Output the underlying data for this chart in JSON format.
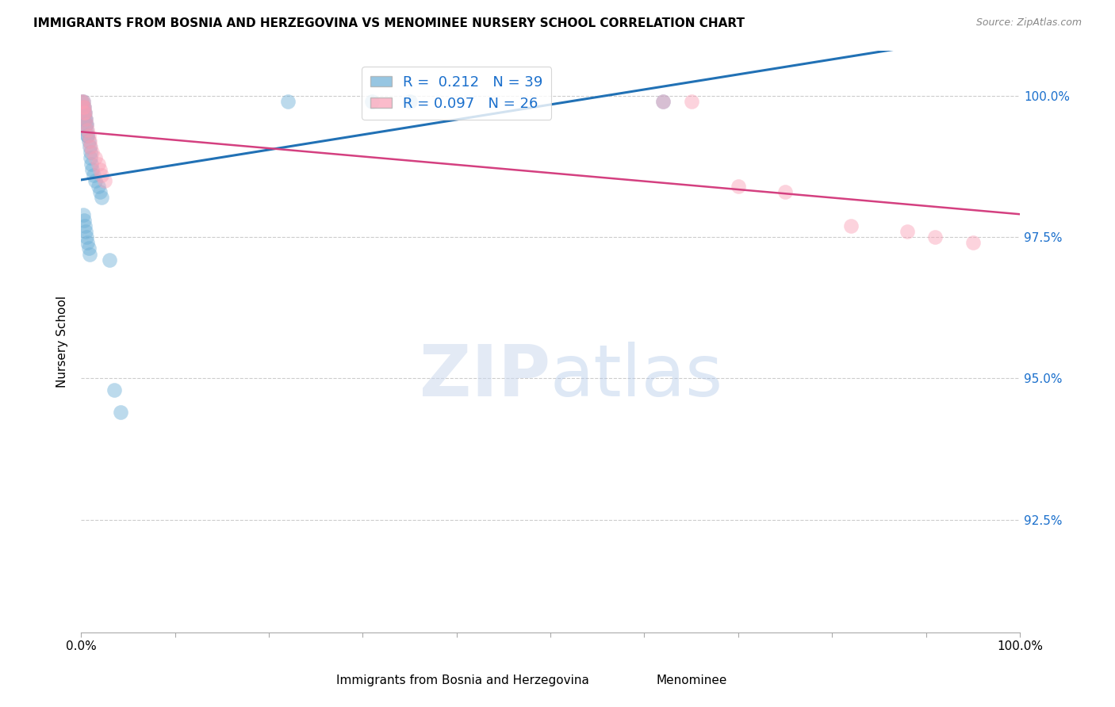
{
  "title": "IMMIGRANTS FROM BOSNIA AND HERZEGOVINA VS MENOMINEE NURSERY SCHOOL CORRELATION CHART",
  "source": "Source: ZipAtlas.com",
  "ylabel": "Nursery School",
  "xlabel_legend1": "Immigrants from Bosnia and Herzegovina",
  "xlabel_legend2": "Menominee",
  "R1": 0.212,
  "N1": 39,
  "R2": 0.097,
  "N2": 26,
  "color1": "#6baed6",
  "color2": "#fa9fb5",
  "line_color1": "#2171b5",
  "line_color2": "#d44080",
  "xlim": [
    0.0,
    1.0
  ],
  "ylim": [
    0.905,
    1.008
  ],
  "yticks": [
    0.925,
    0.95,
    0.975,
    1.0
  ],
  "ytick_labels": [
    "92.5%",
    "95.0%",
    "97.5%",
    "100.0%"
  ],
  "xticks": [
    0.0,
    0.1,
    0.2,
    0.3,
    0.4,
    0.5,
    0.6,
    0.7,
    0.8,
    0.9,
    1.0
  ],
  "xtick_labels": [
    "0.0%",
    "",
    "",
    "",
    "",
    "",
    "",
    "",
    "",
    "",
    "100.0%"
  ],
  "blue_x": [
    0.001,
    0.002,
    0.002,
    0.003,
    0.003,
    0.004,
    0.004,
    0.005,
    0.005,
    0.006,
    0.006,
    0.007,
    0.007,
    0.008,
    0.009,
    0.01,
    0.01,
    0.011,
    0.012,
    0.013,
    0.015,
    0.018,
    0.02,
    0.022,
    0.002,
    0.003,
    0.004,
    0.005,
    0.006,
    0.007,
    0.008,
    0.009,
    0.03,
    0.035,
    0.042,
    0.22,
    0.31,
    0.35,
    0.62
  ],
  "blue_y": [
    0.999,
    0.999,
    0.998,
    0.998,
    0.997,
    0.997,
    0.996,
    0.996,
    0.995,
    0.995,
    0.994,
    0.993,
    0.993,
    0.992,
    0.991,
    0.99,
    0.989,
    0.988,
    0.987,
    0.986,
    0.985,
    0.984,
    0.983,
    0.982,
    0.979,
    0.978,
    0.977,
    0.976,
    0.975,
    0.974,
    0.973,
    0.972,
    0.971,
    0.948,
    0.944,
    0.999,
    0.999,
    0.999,
    0.999
  ],
  "pink_x": [
    0.001,
    0.002,
    0.002,
    0.003,
    0.003,
    0.004,
    0.005,
    0.006,
    0.007,
    0.008,
    0.009,
    0.01,
    0.012,
    0.015,
    0.018,
    0.02,
    0.022,
    0.025,
    0.62,
    0.65,
    0.7,
    0.75,
    0.82,
    0.88,
    0.91,
    0.95
  ],
  "pink_y": [
    0.999,
    0.999,
    0.998,
    0.998,
    0.997,
    0.997,
    0.996,
    0.995,
    0.994,
    0.993,
    0.992,
    0.991,
    0.99,
    0.989,
    0.988,
    0.987,
    0.986,
    0.985,
    0.999,
    0.999,
    0.984,
    0.983,
    0.977,
    0.976,
    0.975,
    0.974
  ]
}
